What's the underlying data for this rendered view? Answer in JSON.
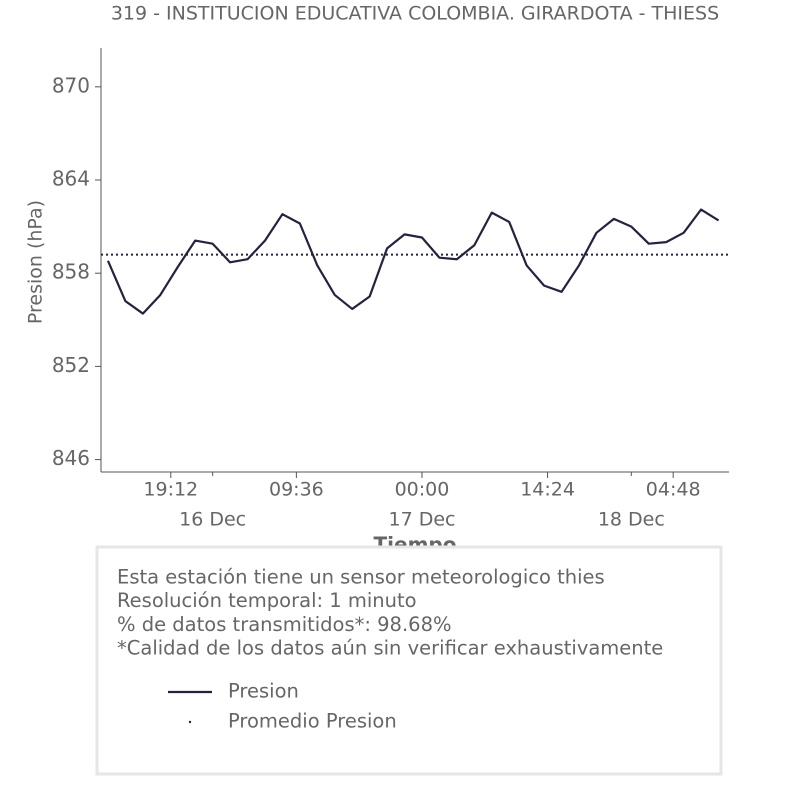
{
  "chart_data": {
    "type": "line",
    "title": "319 - INSTITUCION EDUCATIVA COLOMBIA. GIRARDOTA - THIESS",
    "ylabel": "Presion (hPa)",
    "xlabel": "Tiempo",
    "ylim": [
      845.2,
      872.5
    ],
    "yticks": [
      846,
      852,
      858,
      864,
      870
    ],
    "xlim": [
      "15 Dec 11:12",
      "18 Dec 11:12"
    ],
    "xticks": [
      {
        "value": "15 Dec 19:12",
        "label": "19:12"
      },
      {
        "value": "16 Dec 09:36",
        "label": "09:36"
      },
      {
        "value": "17 Dec 00:00",
        "label": "00:00"
      },
      {
        "value": "17 Dec 14:24",
        "label": "14:24"
      },
      {
        "value": "18 Dec 04:48",
        "label": "04:48"
      }
    ],
    "date_ticks": [
      {
        "value": "16 Dec 00:00",
        "label": "16 Dec"
      },
      {
        "value": "17 Dec 00:00",
        "label": "17 Dec"
      },
      {
        "value": "18 Dec 00:00",
        "label": "18 Dec"
      }
    ],
    "x": [
      "15 Dec 12:00",
      "15 Dec 14:00",
      "15 Dec 16:00",
      "15 Dec 18:00",
      "15 Dec 20:00",
      "15 Dec 22:00",
      "16 Dec 00:00",
      "16 Dec 02:00",
      "16 Dec 04:00",
      "16 Dec 06:00",
      "16 Dec 08:00",
      "16 Dec 10:00",
      "16 Dec 12:00",
      "16 Dec 14:00",
      "16 Dec 16:00",
      "16 Dec 18:00",
      "16 Dec 20:00",
      "16 Dec 22:00",
      "17 Dec 00:00",
      "17 Dec 02:00",
      "17 Dec 04:00",
      "17 Dec 06:00",
      "17 Dec 08:00",
      "17 Dec 10:00",
      "17 Dec 12:00",
      "17 Dec 14:00",
      "17 Dec 16:00",
      "17 Dec 18:00",
      "17 Dec 20:00",
      "17 Dec 22:00",
      "18 Dec 00:00",
      "18 Dec 02:00",
      "18 Dec 04:00",
      "18 Dec 06:00",
      "18 Dec 08:00",
      "18 Dec 10:00"
    ],
    "series": [
      {
        "name": "Presion",
        "color": "#23233f",
        "values": [
          858.8,
          856.2,
          855.4,
          856.6,
          858.4,
          860.1,
          859.9,
          858.7,
          858.9,
          860.1,
          861.8,
          861.2,
          858.5,
          856.6,
          855.7,
          856.5,
          859.6,
          860.5,
          860.3,
          859.0,
          858.9,
          859.8,
          861.9,
          861.3,
          858.5,
          857.2,
          856.8,
          858.5,
          860.6,
          861.5,
          861.0,
          859.9,
          860.0,
          860.6,
          862.1,
          861.4
        ]
      },
      {
        "name": "Promedio Presion",
        "color": "#23233f",
        "style": "dotted",
        "value": 859.2
      }
    ],
    "info": [
      "Esta estación tiene un sensor meteorologico thies",
      "Resolución temporal: 1 minuto",
      "% de datos transmitidos*: 98.68%",
      "*Calidad de los datos aún sin verificar exhaustivamente"
    ]
  }
}
